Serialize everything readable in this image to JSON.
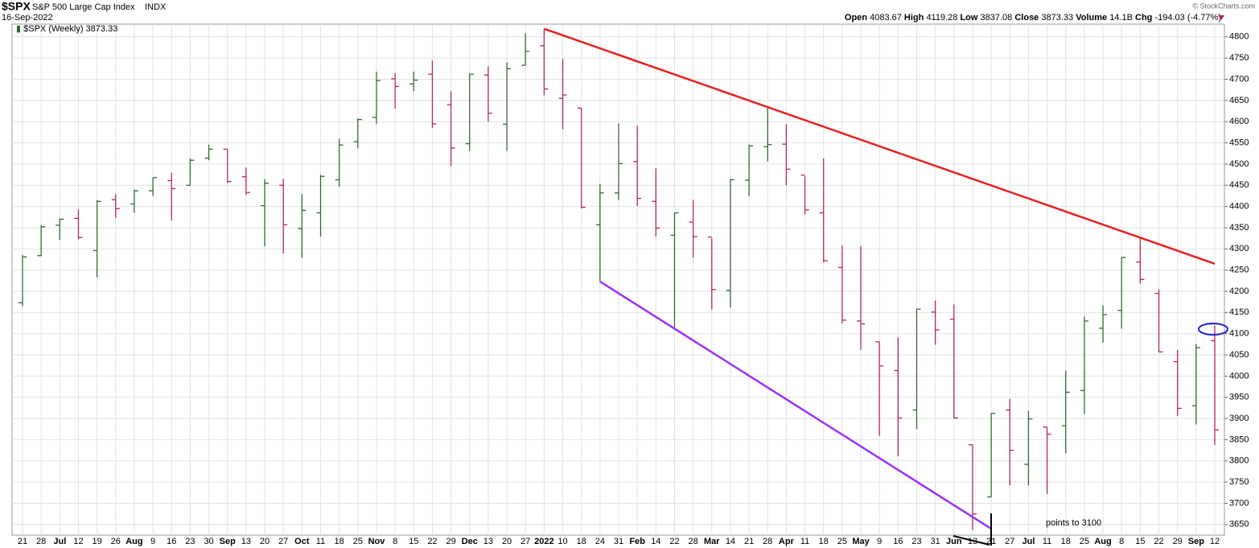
{
  "chart_data": {
    "type": "ohlc",
    "symbol": "$SPX",
    "name": "S&P 500 Large Cap Index",
    "exchange": "INDX",
    "date": "16-Sep-2022",
    "copyright": "© StockCharts.com",
    "legend": "$SPX (Weekly)",
    "header_labels": {
      "open": "Open",
      "high": "High",
      "low": "Low",
      "close": "Close",
      "volume": "Volume",
      "chg": "Chg"
    },
    "volume": "14.1B",
    "chg": "-194.03 (-4.77%)",
    "annotation": "points to 3100",
    "up_color": "#2f6b2f",
    "down_color": "#b3245c",
    "grid": true,
    "categories": [
      "21",
      "28",
      "Jul",
      "12",
      "19",
      "26",
      "Aug",
      "9",
      "16",
      "23",
      "30",
      "Sep",
      "13",
      "20",
      "27",
      "Oct",
      "11",
      "18",
      "25",
      "Nov",
      "8",
      "15",
      "22",
      "29",
      "Dec",
      "13",
      "20",
      "27",
      "2022",
      "10",
      "18",
      "24",
      "31",
      "Feb",
      "14",
      "22",
      "28",
      "Mar",
      "14",
      "21",
      "28",
      "Apr",
      "11",
      "18",
      "25",
      "May",
      "9",
      "16",
      "23",
      "31",
      "Jun",
      "13",
      "21",
      "27",
      "Jul",
      "11",
      "18",
      "25",
      "Aug",
      "8",
      "15",
      "22",
      "29",
      "Sep",
      "12"
    ],
    "open": [
      4173,
      4284,
      4356,
      4372,
      4296,
      4416,
      4406,
      4437,
      4461,
      4450,
      4514,
      4535,
      4470,
      4402,
      4450,
      4348,
      4385,
      4463,
      4553,
      4610,
      4701,
      4689,
      4712,
      4640,
      4548,
      4710,
      4594,
      4733,
      4779,
      4655,
      4632,
      4357,
      4432,
      4506,
      4412,
      4332,
      4363,
      4328,
      4202,
      4462,
      4541,
      4547,
      4474,
      4385,
      4256,
      4130,
      4081,
      4013,
      3920,
      4151,
      4134,
      3838,
      3715,
      3920,
      3792,
      3880,
      3883,
      3966,
      4113,
      4155,
      4269,
      4195,
      4034,
      3930,
      4083.67
    ],
    "high": [
      4286,
      4356,
      4372,
      4393,
      4415,
      4429,
      4440,
      4468,
      4480,
      4513,
      4546,
      4535,
      4492,
      4465,
      4465,
      4429,
      4475,
      4559,
      4608,
      4718,
      4714,
      4718,
      4744,
      4672,
      4713,
      4731,
      4740,
      4808,
      4819,
      4748,
      4632,
      4453,
      4596,
      4590,
      4490,
      4385,
      4416,
      4325,
      4465,
      4546,
      4637,
      4594,
      4471,
      4513,
      4308,
      4307,
      4081,
      4091,
      4158,
      4178,
      4169,
      3838,
      3913,
      3946,
      3918,
      3880,
      4013,
      4140,
      4167,
      4281,
      4325,
      4204,
      4062,
      4076,
      4119.28
    ],
    "low": [
      4165,
      4283,
      4321,
      4323,
      4233,
      4373,
      4385,
      4425,
      4367,
      4450,
      4509,
      4456,
      4427,
      4306,
      4289,
      4279,
      4329,
      4447,
      4537,
      4595,
      4631,
      4672,
      4585,
      4495,
      4531,
      4600,
      4531,
      4733,
      4662,
      4582,
      4395,
      4223,
      4415,
      4401,
      4329,
      4115,
      4279,
      4157,
      4162,
      4424,
      4506,
      4450,
      4381,
      4268,
      4124,
      4062,
      3859,
      3811,
      3875,
      4074,
      3900,
      3637,
      3715,
      3742,
      3742,
      3722,
      3818,
      3911,
      4079,
      4112,
      4218,
      4057,
      3906,
      3886,
      3837.08
    ],
    "close": [
      4281,
      4352,
      4370,
      4327,
      4412,
      4395,
      4437,
      4468,
      4442,
      4509,
      4535,
      4459,
      4433,
      4455,
      4357,
      4391,
      4471,
      4545,
      4605,
      4697,
      4683,
      4698,
      4595,
      4538,
      4712,
      4620,
      4725,
      4766,
      4677,
      4663,
      4398,
      4432,
      4501,
      4419,
      4349,
      4385,
      4329,
      4204,
      4463,
      4543,
      4546,
      4488,
      4392,
      4272,
      4132,
      4123,
      4024,
      3901,
      4158,
      4109,
      3901,
      3675,
      3912,
      3825,
      3899,
      3863,
      3962,
      4130,
      4145,
      4280,
      4228,
      4057,
      3924,
      4067,
      3873.33
    ],
    "ylim": [
      3625,
      4830
    ],
    "yticks": [
      3650,
      3700,
      3750,
      3800,
      3850,
      3900,
      3950,
      4000,
      4050,
      4100,
      4150,
      4200,
      4250,
      4300,
      4350,
      4400,
      4450,
      4500,
      4550,
      4600,
      4650,
      4700,
      4750,
      4800
    ]
  }
}
